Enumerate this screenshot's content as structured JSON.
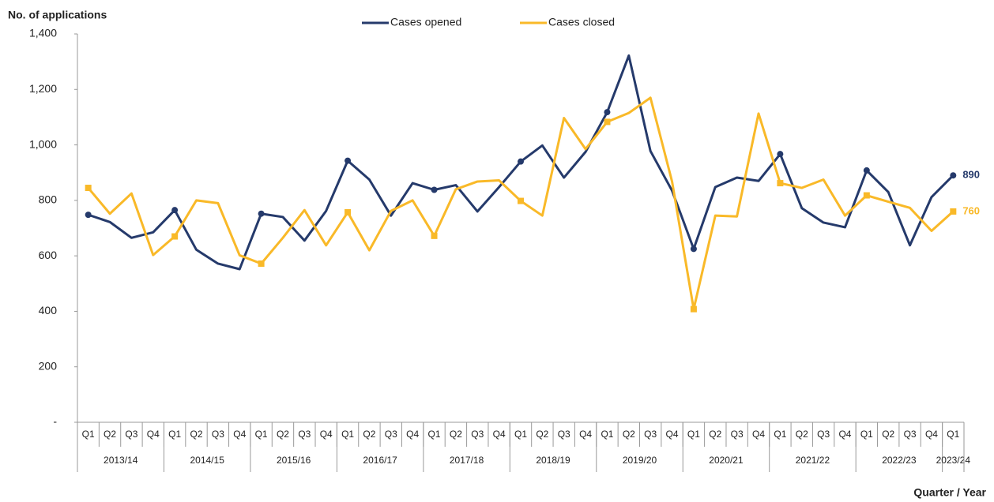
{
  "chart_data": {
    "type": "line",
    "y_title": "No. of applications",
    "x_title": "Quarter / Year",
    "categories": [
      "Q1",
      "Q2",
      "Q3",
      "Q4",
      "Q1",
      "Q2",
      "Q3",
      "Q4",
      "Q1",
      "Q2",
      "Q3",
      "Q4",
      "Q1",
      "Q2",
      "Q3",
      "Q4",
      "Q1",
      "Q2",
      "Q3",
      "Q4",
      "Q1",
      "Q2",
      "Q3",
      "Q4",
      "Q1",
      "Q2",
      "Q3",
      "Q4",
      "Q1",
      "Q2",
      "Q3",
      "Q4",
      "Q1",
      "Q2",
      "Q3",
      "Q4",
      "Q1",
      "Q2",
      "Q3",
      "Q4",
      "Q1"
    ],
    "groups": [
      {
        "label": "2013/14",
        "span": 4
      },
      {
        "label": "2014/15",
        "span": 4
      },
      {
        "label": "2015/16",
        "span": 4
      },
      {
        "label": "2016/17",
        "span": 4
      },
      {
        "label": "2017/18",
        "span": 4
      },
      {
        "label": "2018/19",
        "span": 4
      },
      {
        "label": "2019/20",
        "span": 4
      },
      {
        "label": "2020/21",
        "span": 4
      },
      {
        "label": "2021/22",
        "span": 4
      },
      {
        "label": "2022/23",
        "span": 4
      },
      {
        "label": "2023/24",
        "span": 1
      }
    ],
    "series": [
      {
        "name": "Cases opened",
        "color": "#253a6b",
        "marker": "circle",
        "values": [
          748,
          722,
          665,
          685,
          765,
          622,
          572,
          552,
          752,
          740,
          655,
          762,
          943,
          875,
          745,
          862,
          838,
          855,
          760,
          848,
          940,
          998,
          882,
          975,
          1118,
          1322,
          978,
          835,
          625,
          848,
          882,
          870,
          967,
          772,
          720,
          703,
          908,
          830,
          638,
          812,
          890
        ]
      },
      {
        "name": "Cases closed",
        "color": "#f9b928",
        "marker": "square",
        "values": [
          845,
          752,
          825,
          603,
          670,
          800,
          790,
          602,
          572,
          665,
          765,
          638,
          757,
          620,
          762,
          800,
          672,
          840,
          868,
          872,
          798,
          745,
          1097,
          985,
          1083,
          1115,
          1170,
          868,
          408,
          745,
          742,
          1113,
          862,
          845,
          875,
          745,
          818,
          795,
          773,
          690,
          760
        ]
      }
    ],
    "marker_every": 4,
    "end_labels": true,
    "legend": "top",
    "ylim": [
      0,
      1400
    ],
    "yticks": [
      {
        "value": 0,
        "label": "-"
      },
      200,
      400,
      600,
      800,
      {
        "value": 1000,
        "label": "1,000"
      },
      {
        "value": 1200,
        "label": "1,200"
      },
      {
        "value": 1400,
        "label": "1,400"
      }
    ]
  }
}
